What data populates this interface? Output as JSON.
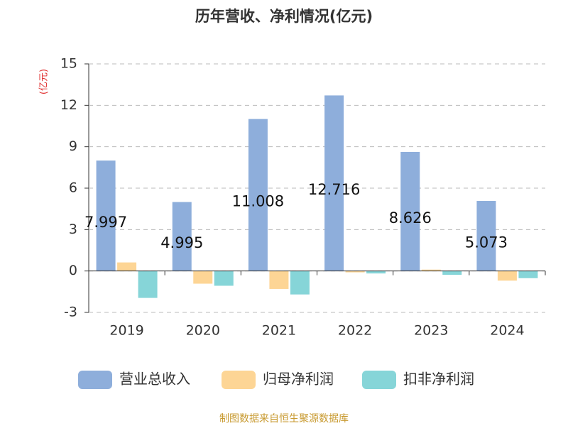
{
  "chart_data": {
    "type": "bar",
    "title": "历年营收、净利情况(亿元)",
    "y_axis_label": "(亿元)",
    "categories": [
      "2019",
      "2020",
      "2021",
      "2022",
      "2023",
      "2024"
    ],
    "series": [
      {
        "name": "营业总收入",
        "color": "#8eaedb",
        "values": [
          7.997,
          4.995,
          11.008,
          12.716,
          8.626,
          5.073
        ],
        "show_labels": true
      },
      {
        "name": "归母净利润",
        "color": "#fdd595",
        "values": [
          0.62,
          -0.92,
          -1.3,
          -0.1,
          0.1,
          -0.7
        ]
      },
      {
        "name": "扣非净利润",
        "color": "#86d5d8",
        "values": [
          -1.95,
          -1.07,
          -1.7,
          -0.18,
          -0.28,
          -0.52
        ]
      }
    ],
    "ylim": [
      -3,
      15
    ],
    "yticks": [
      -3,
      0,
      3,
      6,
      9,
      12,
      15
    ],
    "grid": true,
    "legend": "bottom",
    "source": "制图数据来自恒生聚源数据库"
  }
}
